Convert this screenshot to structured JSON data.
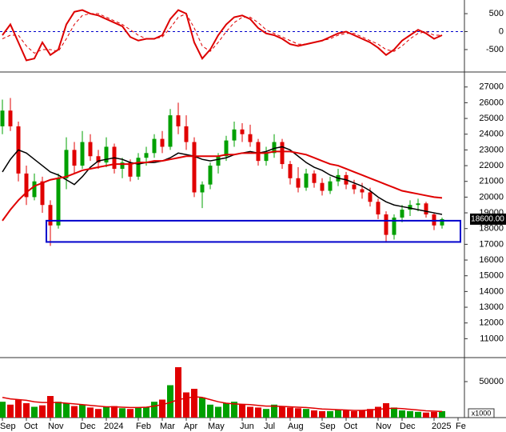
{
  "chart_data": [
    {
      "type": "line",
      "ylim": [
        -1080,
        880
      ],
      "yticks": [
        -500,
        0,
        500
      ],
      "reference_line": 0,
      "reference_color": "#0000cc",
      "series": [
        {
          "color": "#dd0000",
          "values": [
            -100,
            200,
            -300,
            -800,
            -750,
            -300,
            -650,
            -500,
            200,
            550,
            600,
            500,
            450,
            350,
            250,
            150,
            -150,
            -250,
            -200,
            -200,
            -100,
            350,
            600,
            500,
            -300,
            -750,
            -500,
            -100,
            200,
            400,
            450,
            350,
            100,
            -50,
            -100,
            -200,
            -350,
            -400,
            -350,
            -300,
            -250,
            -150,
            -50,
            0,
            -100,
            -200,
            -300,
            -450,
            -650,
            -500,
            -250,
            -100,
            50,
            -50,
            -200,
            -100
          ]
        },
        {
          "color": "#dd0000",
          "dashed": true,
          "values": [
            -200,
            -100,
            -100,
            -400,
            -600,
            -500,
            -500,
            -550,
            -200,
            200,
            450,
            500,
            500,
            400,
            300,
            200,
            50,
            -100,
            -200,
            -200,
            -150,
            100,
            400,
            500,
            100,
            -400,
            -550,
            -300,
            0,
            250,
            400,
            400,
            250,
            50,
            -50,
            -150,
            -250,
            -350,
            -350,
            -300,
            -250,
            -200,
            -100,
            -50,
            -50,
            -150,
            -250,
            -350,
            -500,
            -550,
            -400,
            -200,
            -50,
            0,
            -100,
            -100
          ]
        }
      ]
    },
    {
      "type": "candlestick",
      "ylim": [
        9900,
        27800
      ],
      "yticks": [
        11000,
        12000,
        13000,
        14000,
        15000,
        16000,
        17000,
        18000,
        19000,
        20000,
        21000,
        22000,
        23000,
        24000,
        25000,
        26000,
        27000
      ],
      "up_color": "#00a000",
      "down_color": "#e00000",
      "open": [
        24500,
        25500,
        24500,
        21500,
        20000,
        21000,
        19500,
        18200,
        21200,
        23000,
        22000,
        23500,
        22600,
        22200,
        23200,
        21800,
        22200,
        21300,
        22500,
        22800,
        23700,
        23200,
        25200,
        24500,
        23500,
        20300,
        20800,
        22000,
        22600,
        23600,
        24300,
        24000,
        23500,
        22300,
        22800,
        23500,
        22100,
        21200,
        20600,
        21500,
        20900,
        20400,
        21000,
        21400,
        20800,
        20500,
        20300,
        19700,
        18900,
        17600,
        18700,
        19200,
        19500,
        19600,
        18900,
        18200
      ],
      "high": [
        26200,
        26300,
        24800,
        22000,
        21500,
        21300,
        19800,
        21500,
        23800,
        23500,
        24200,
        24000,
        23000,
        23800,
        23400,
        22500,
        22400,
        22800,
        23200,
        24000,
        24200,
        25600,
        26000,
        25200,
        23800,
        21000,
        22200,
        22800,
        23900,
        24800,
        24700,
        24600,
        23700,
        23200,
        24000,
        23700,
        22300,
        21900,
        21800,
        21700,
        21200,
        21300,
        21800,
        21600,
        21100,
        20900,
        20600,
        19900,
        19100,
        18900,
        19500,
        19800,
        19900,
        19700,
        19000,
        18700
      ],
      "low": [
        24000,
        24200,
        21000,
        19500,
        19800,
        19000,
        16900,
        18000,
        20500,
        21500,
        21800,
        22300,
        21800,
        21900,
        21500,
        21200,
        21000,
        21100,
        22000,
        22500,
        22800,
        23000,
        24000,
        23000,
        20000,
        19300,
        20500,
        21500,
        22300,
        23200,
        23500,
        23200,
        22000,
        22000,
        22500,
        21800,
        20800,
        20300,
        20400,
        20600,
        20100,
        20200,
        20700,
        20500,
        20200,
        19900,
        19400,
        18600,
        17100,
        17300,
        18400,
        18800,
        19100,
        18700,
        17900,
        18000
      ],
      "close": [
        25500,
        24500,
        21500,
        20000,
        21000,
        19500,
        18200,
        21200,
        23000,
        22000,
        23500,
        22600,
        22200,
        23200,
        21800,
        22200,
        21300,
        22500,
        22800,
        23700,
        23200,
        25200,
        24500,
        23500,
        20300,
        20800,
        22000,
        22600,
        23600,
        24300,
        24000,
        23500,
        22300,
        22800,
        23500,
        22100,
        21200,
        20600,
        21500,
        20900,
        20400,
        21000,
        21400,
        20800,
        20500,
        20300,
        19700,
        18900,
        17600,
        18700,
        19200,
        19500,
        19600,
        18900,
        18200,
        18600
      ],
      "series": [
        {
          "color": "#000000",
          "values": [
            21600,
            22400,
            23000,
            22800,
            22400,
            22000,
            21600,
            21400,
            21100,
            20800,
            21300,
            21900,
            22300,
            22400,
            22500,
            22400,
            22200,
            22100,
            22200,
            22200,
            22300,
            22500,
            22800,
            22700,
            22600,
            22400,
            22300,
            22400,
            22500,
            22700,
            22800,
            22900,
            22800,
            22900,
            23100,
            23200,
            23000,
            22600,
            22200,
            21900,
            21700,
            21400,
            21200,
            21100,
            20900,
            20700,
            20400,
            20000,
            19700,
            19500,
            19400,
            19300,
            19200,
            19100,
            19000,
            18900
          ]
        },
        {
          "color": "#e00000",
          "values": [
            18500,
            19200,
            19800,
            20300,
            20700,
            20900,
            21100,
            21200,
            21300,
            21500,
            21700,
            21800,
            21900,
            22000,
            22100,
            22100,
            22100,
            22200,
            22200,
            22300,
            22300,
            22400,
            22500,
            22600,
            22600,
            22600,
            22600,
            22600,
            22700,
            22700,
            22800,
            22800,
            22800,
            22800,
            22900,
            22900,
            22900,
            22800,
            22700,
            22500,
            22300,
            22100,
            22000,
            21800,
            21600,
            21400,
            21200,
            21000,
            20800,
            20600,
            20400,
            20300,
            20200,
            20100,
            20000,
            19950
          ]
        }
      ],
      "support_zone": {
        "low": 17150,
        "high": 18500,
        "color": "#0000cc"
      },
      "last_price": {
        "value": 18600,
        "label": "18600.00"
      }
    },
    {
      "type": "bar",
      "ylim": [
        0,
        80000
      ],
      "yticks": [
        50000
      ],
      "unit_label": "x1000",
      "categories": [
        "Sep",
        null,
        null,
        "Oct",
        null,
        null,
        "Nov",
        null,
        null,
        null,
        "Dec",
        null,
        null,
        "2024",
        null,
        null,
        null,
        "Feb",
        null,
        null,
        "Mar",
        null,
        null,
        "Apr",
        null,
        null,
        "May",
        null,
        null,
        null,
        "Jun",
        null,
        null,
        "Jul",
        null,
        null,
        "Aug",
        null,
        null,
        null,
        "Sep",
        null,
        null,
        "Oct",
        null,
        null,
        null,
        "Nov",
        null,
        null,
        "Dec",
        null,
        null,
        null,
        "2025",
        null,
        null,
        "Fe"
      ],
      "values": [
        22000,
        18000,
        25000,
        20000,
        15000,
        17000,
        30000,
        22000,
        20000,
        16000,
        18000,
        14000,
        12000,
        15000,
        16000,
        13000,
        12000,
        14000,
        15000,
        22000,
        25000,
        45000,
        70000,
        35000,
        40000,
        28000,
        18000,
        15000,
        20000,
        22000,
        18000,
        15000,
        14000,
        12000,
        18000,
        15000,
        14000,
        13000,
        12000,
        10000,
        9000,
        9000,
        11000,
        10000,
        9000,
        10000,
        12000,
        15000,
        20000,
        14000,
        10000,
        9000,
        8000,
        7000,
        8000,
        9000,
        null,
        null
      ],
      "series": [
        {
          "color": "#e00000",
          "values": [
            28000,
            26000,
            25000,
            24000,
            22000,
            21000,
            21000,
            21000,
            20000,
            19000,
            18000,
            17000,
            16000,
            15000,
            15000,
            14500,
            14000,
            14000,
            14500,
            16000,
            18000,
            21000,
            25000,
            27000,
            29000,
            28000,
            25000,
            22000,
            20000,
            19000,
            18500,
            18000,
            17000,
            16000,
            16000,
            15500,
            15000,
            14500,
            14000,
            13000,
            12000,
            11500,
            11000,
            10500,
            10000,
            10000,
            10500,
            11500,
            12500,
            13000,
            12500,
            11500,
            10500,
            9500,
            9000,
            8500,
            null,
            null
          ]
        }
      ]
    }
  ]
}
